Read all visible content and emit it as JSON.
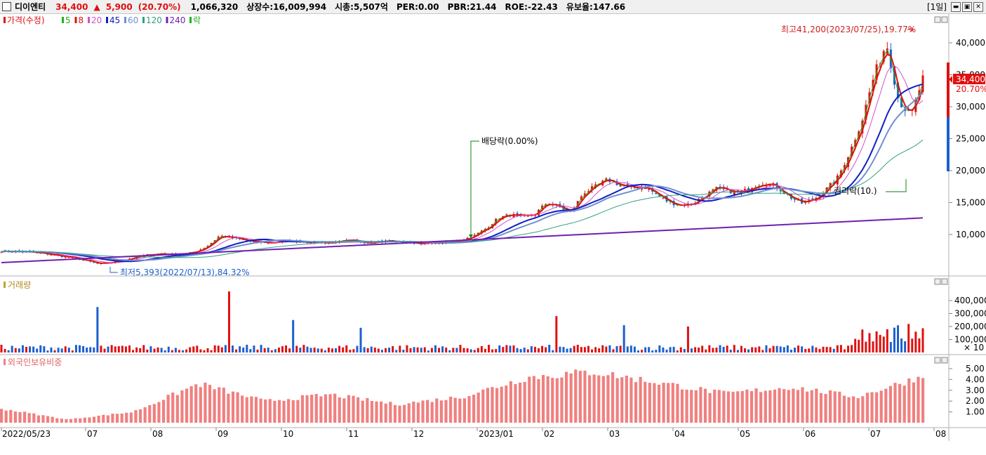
{
  "header": {
    "stock_name": "디이엔티",
    "price": "34,400",
    "change_arrow": "▲",
    "change": "5,900",
    "change_pct": "(20.70%)",
    "volume": "1,066,320",
    "listed_shares": "상장수:16,009,994",
    "market_cap": "시총:5,507억",
    "per": "PER:0.00",
    "pbr": "PBR:21.44",
    "roe": "ROE:-22.43",
    "float_ratio": "유보율:147.66",
    "period": "[1일]"
  },
  "colors": {
    "up": "#e01010",
    "down": "#1c5fd0",
    "ma5": "#20b020",
    "ma8": "#e01010",
    "ma20": "#cc55cc",
    "ma45": "#1020c0",
    "ma60": "#7090d0",
    "ma120": "#30a080",
    "ma240": "#7020b0",
    "foreign_bar": "#f08080"
  },
  "chart_data": [
    {
      "type": "line",
      "name": "price",
      "legend": [
        {
          "label": "가격(수정)",
          "color": "#e01010"
        },
        {
          "label": "5",
          "color": "#20b020"
        },
        {
          "label": "8",
          "color": "#e01010"
        },
        {
          "label": "20",
          "color": "#cc55cc"
        },
        {
          "label": "45",
          "color": "#1020c0"
        },
        {
          "label": "60",
          "color": "#7090d0"
        },
        {
          "label": "120",
          "color": "#30a080"
        },
        {
          "label": "240",
          "color": "#7020b0"
        },
        {
          "label": "락",
          "color": "#20b020"
        }
      ],
      "y_ticks": [
        "40,000",
        "35,000",
        "30,000",
        "25,000",
        "20,000",
        "15,000",
        "10,000"
      ],
      "ylim": [
        5000,
        42000
      ],
      "x_labels": [
        "2022/05/23",
        "07",
        "08",
        "09",
        "10",
        "11",
        "12",
        "2023/01",
        "02",
        "03",
        "04",
        "05",
        "06",
        "07",
        "08"
      ],
      "close_series": [
        7400,
        7350,
        7300,
        7100,
        6900,
        6600,
        6300,
        5900,
        5393,
        5600,
        6000,
        6400,
        6800,
        7000,
        6900,
        6900,
        7300,
        8200,
        9800,
        9500,
        9100,
        8800,
        8700,
        8900,
        9000,
        8900,
        8800,
        8700,
        8900,
        9000,
        8800,
        8900,
        9000,
        8800,
        8700,
        8600,
        8700,
        8800,
        9200,
        9800,
        11000,
        12600,
        13100,
        12700,
        13200,
        15000,
        14300,
        13500,
        16500,
        17500,
        18600,
        17800,
        17200,
        17600,
        16300,
        15100,
        14600,
        14800,
        16100,
        17200,
        16800,
        16500,
        17600,
        18200,
        17400,
        15900,
        14900,
        15500,
        17000,
        19000,
        23000,
        28000,
        35000,
        40000,
        31000,
        28500,
        34400
      ],
      "ma_labels": [
        "MA5",
        "MA8",
        "MA20",
        "MA45",
        "MA60",
        "MA120",
        "MA240"
      ],
      "annotations": {
        "high": "최고41,200(2023/07/25),19.77%",
        "low": "최저5,393(2022/07/13),84.32%",
        "dividend": "배당락(0.00%)",
        "rights": "권리락(10.)"
      },
      "current_price_label": "34,400",
      "current_pct_label": "20.70%"
    },
    {
      "type": "bar",
      "name": "volume",
      "legend": "거래량",
      "y_ticks": [
        "400,000",
        "300,000",
        "200,000",
        "100,000"
      ],
      "unit_label": "× 10",
      "ylim": [
        0,
        480000
      ],
      "spikes": [
        {
          "month": "09",
          "value": 470000
        },
        {
          "month": "10",
          "value": 250000
        },
        {
          "month": "11",
          "value": 190000
        },
        {
          "month": "02",
          "value": 280000
        },
        {
          "month": "03",
          "value": 210000
        },
        {
          "month": "04",
          "value": 200000
        },
        {
          "month": "07",
          "value": 350000
        }
      ]
    },
    {
      "type": "bar",
      "name": "foreign_ownership",
      "legend": "외국인보유비중",
      "y_ticks": [
        "5.00",
        "4.00",
        "3.00",
        "2.00",
        "1.00"
      ],
      "ylim": [
        0,
        5.6
      ],
      "monthly_levels": [
        {
          "month": "2022/05/23",
          "value": 1.3
        },
        {
          "month": "07",
          "value": 0.3
        },
        {
          "month": "08",
          "value": 1.0
        },
        {
          "month": "09",
          "value": 3.6
        },
        {
          "month": "10",
          "value": 2.0
        },
        {
          "month": "11",
          "value": 2.6
        },
        {
          "month": "12",
          "value": 1.7
        },
        {
          "month": "2023/01",
          "value": 2.4
        },
        {
          "month": "02",
          "value": 4.2
        },
        {
          "month": "03",
          "value": 4.7
        },
        {
          "month": "04",
          "value": 3.7
        },
        {
          "month": "05",
          "value": 2.7
        },
        {
          "month": "06",
          "value": 3.3
        },
        {
          "month": "07",
          "value": 2.4
        },
        {
          "month": "08",
          "value": 4.3
        }
      ]
    }
  ]
}
